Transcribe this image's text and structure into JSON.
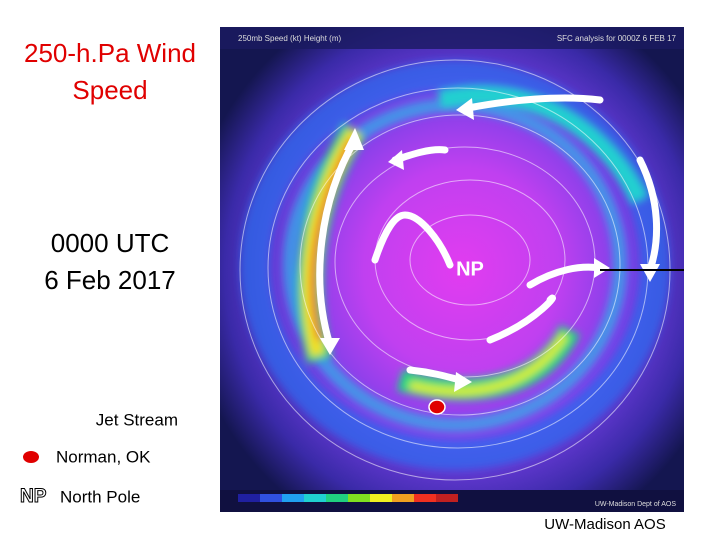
{
  "title_lines": [
    "250-h.Pa Wind",
    "Speed"
  ],
  "time_lines": [
    "0000 UTC",
    "6 Feb 2017"
  ],
  "map": {
    "header_left": "250mb Speed (kt) Height (m)",
    "header_right": "SFC analysis for 0000Z 6 FEB 17",
    "pole_label": "NP",
    "footer": "UW-Madison Dept of AOS"
  },
  "legend": {
    "jet": "Jet Stream",
    "norman_symbol_label": "Norman, OK",
    "pole_symbol": "NP",
    "pole_label": "North Pole"
  },
  "credit": "UW-Madison AOS"
}
